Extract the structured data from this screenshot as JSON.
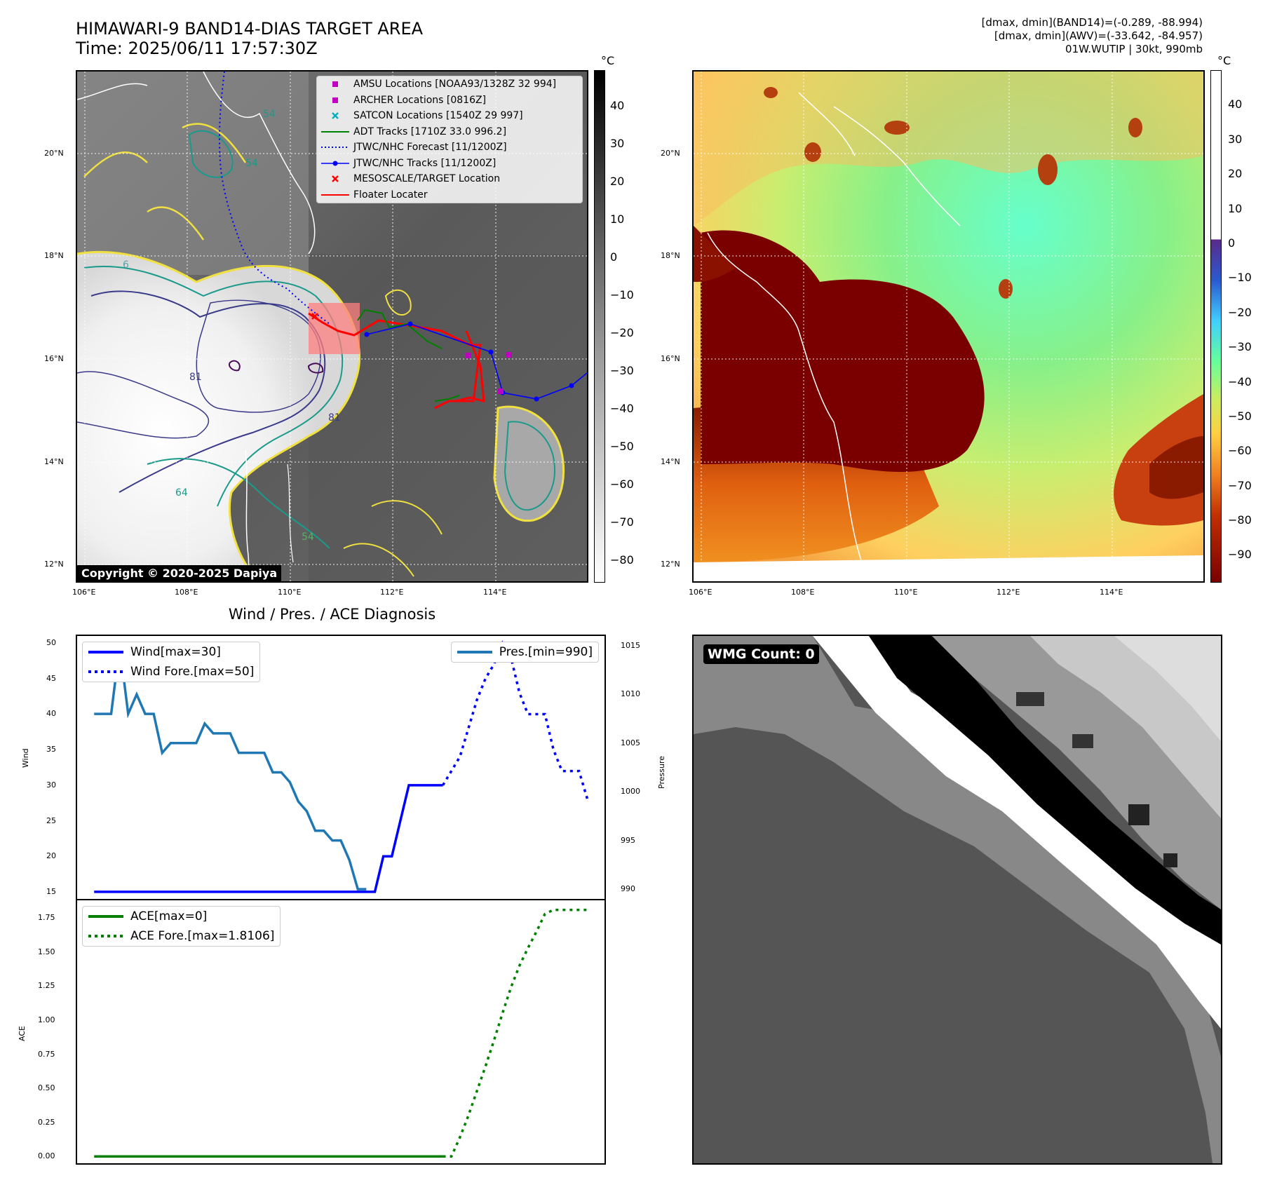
{
  "header": {
    "title_line1": "HIMAWARI-9 BAND14-DIAS TARGET AREA",
    "title_line2": "Time: 2025/06/11 17:57:30Z",
    "info_line1": "[dmax, dmin](BAND14)=(-0.289, -88.994)",
    "info_line2": "[dmax, dmin](AWV)=(-33.642, -84.957)",
    "info_line3": "01W.WUTIP | 30kt, 990mb"
  },
  "map": {
    "lon_ticks": [
      "106°E",
      "108°E",
      "110°E",
      "112°E",
      "114°E"
    ],
    "lat_ticks": [
      "20°N",
      "18°N",
      "16°N",
      "14°N",
      "12°N"
    ],
    "copyright": "Copyright © 2020-2025 Dapiya",
    "contour_labels": [
      "54",
      "54",
      "81",
      "81",
      "64",
      "54",
      "6"
    ],
    "legend": [
      {
        "label": "AMSU Locations [NOAA93/1328Z 32 994]",
        "color": "#c000c0",
        "symbol": "square"
      },
      {
        "label": "ARCHER Locations [0816Z]",
        "color": "#c000c0",
        "symbol": "square"
      },
      {
        "label": "SATCON Locations [1540Z 29 997]",
        "color": "#00b0c0",
        "symbol": "x"
      },
      {
        "label": "ADT Tracks [1710Z 33.0 996.2]",
        "color": "#008000",
        "symbol": "line"
      },
      {
        "label": "JTWC/NHC Forecast [11/1200Z]",
        "color": "#0000ff",
        "symbol": "dotted"
      },
      {
        "label": "JTWC/NHC Tracks [11/1200Z]",
        "color": "#0000ff",
        "symbol": "line-dot"
      },
      {
        "label": "MESOSCALE/TARGET Location",
        "color": "#ff0000",
        "symbol": "x"
      },
      {
        "label": "Floater Locater",
        "color": "#ff0000",
        "symbol": "line"
      }
    ]
  },
  "colorbar_left": {
    "unit": "°C",
    "ticks": [
      "40",
      "30",
      "20",
      "10",
      "0",
      "−10",
      "−20",
      "−30",
      "−40",
      "−50",
      "−60",
      "−70",
      "−80"
    ]
  },
  "colorbar_right": {
    "unit": "°C",
    "ticks": [
      "40",
      "30",
      "20",
      "10",
      "0",
      "−10",
      "−20",
      "−30",
      "−40",
      "−50",
      "−60",
      "−70",
      "−80",
      "−90"
    ]
  },
  "wind_panel": {
    "title": "Wind / Pres. / ACE Diagnosis",
    "ylabel_left": "Wind",
    "ylabel_right": "Pressure",
    "wind_ticks": [
      "50",
      "45",
      "40",
      "35",
      "30",
      "25",
      "20",
      "15"
    ],
    "pres_ticks": [
      "1015",
      "1010",
      "1005",
      "1000",
      "995",
      "990"
    ],
    "legend_wind": "Wind[max=30]",
    "legend_wind_fore": "Wind Fore.[max=50]",
    "legend_pres": "Pres.[min=990]",
    "wind_color": "#0000ff",
    "pres_color": "#1f77b4"
  },
  "ace_panel": {
    "ylabel": "ACE",
    "ticks": [
      "1.75",
      "1.50",
      "1.25",
      "1.00",
      "0.75",
      "0.50",
      "0.25",
      "0.00"
    ],
    "legend_ace": "ACE[max=0]",
    "legend_ace_fore": "ACE Fore.[max=1.8106]",
    "color": "#008000"
  },
  "wmg_panel": {
    "label": "WMG Count: 0"
  },
  "chart_data": [
    {
      "type": "line",
      "title": "Wind / Pres. / ACE Diagnosis",
      "ylabel": "Wind",
      "ylim": [
        14,
        51
      ],
      "x": [
        0,
        2,
        4,
        6,
        8,
        10,
        12,
        14,
        16,
        18,
        20,
        22,
        24,
        26,
        28,
        30,
        32,
        34,
        36,
        38,
        40,
        42,
        44,
        46,
        48,
        50,
        52,
        54,
        56,
        58,
        60,
        62,
        64
      ],
      "series": [
        {
          "name": "Wind[max=30]",
          "style": "solid",
          "x": [
            0,
            33,
            34,
            35,
            36,
            37,
            38,
            41
          ],
          "values": [
            15,
            15,
            20,
            20,
            25,
            30,
            30,
            30
          ]
        },
        {
          "name": "Wind Fore.[max=50]",
          "style": "dotted",
          "x": [
            41,
            42,
            43,
            44,
            45,
            46,
            47,
            48,
            49,
            50,
            51,
            52,
            53,
            54,
            55,
            56,
            57,
            58
          ],
          "values": [
            30,
            32,
            34,
            38,
            42,
            45,
            47,
            50,
            48,
            43,
            40,
            40,
            40,
            35,
            32,
            32,
            32,
            28
          ]
        }
      ]
    },
    {
      "type": "line",
      "ylabel": "Pressure",
      "ylim": [
        989,
        1016
      ],
      "series": [
        {
          "name": "Pres.[min=990]",
          "x": [
            0,
            2,
            3,
            4,
            5,
            6,
            7,
            8,
            9,
            10,
            11,
            12,
            13,
            14,
            15,
            16,
            17,
            18,
            19,
            20,
            21,
            22,
            23,
            24,
            25,
            26,
            27,
            28,
            29,
            30,
            31,
            32
          ],
          "values": [
            1008,
            1008,
            1015,
            1008,
            1010,
            1008,
            1008,
            1004,
            1005,
            1005,
            1005,
            1005,
            1007,
            1006,
            1006,
            1006,
            1004,
            1004,
            1004,
            1004,
            1002,
            1002,
            1001,
            999,
            998,
            996,
            996,
            995,
            995,
            993,
            990,
            990
          ]
        }
      ]
    },
    {
      "type": "line",
      "ylabel": "ACE",
      "ylim": [
        -0.05,
        1.88
      ],
      "series": [
        {
          "name": "ACE[max=0]",
          "style": "solid",
          "x": [
            0,
            41
          ],
          "values": [
            0,
            0
          ]
        },
        {
          "name": "ACE Fore.[max=1.8106]",
          "style": "dotted",
          "x": [
            41,
            42,
            43,
            44,
            45,
            46,
            47,
            48,
            49,
            50,
            51,
            52,
            53,
            54,
            55,
            56,
            57,
            58
          ],
          "values": [
            0,
            0,
            0.14,
            0.3,
            0.48,
            0.66,
            0.85,
            1.05,
            1.24,
            1.4,
            1.53,
            1.65,
            1.78,
            1.81,
            1.81,
            1.81,
            1.81,
            1.81
          ]
        }
      ]
    }
  ]
}
